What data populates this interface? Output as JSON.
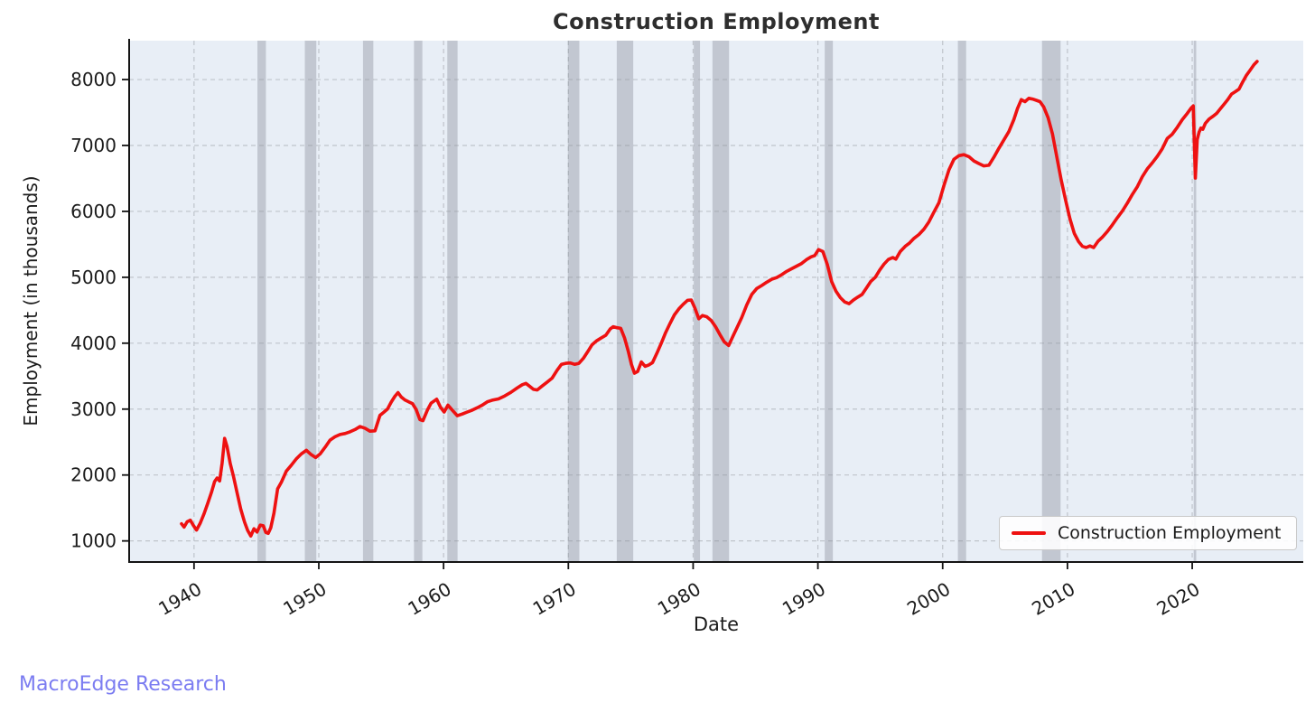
{
  "branding": {
    "watermark": "MacroEdge Research",
    "watermark_color": "#7b7cf1"
  },
  "chart_data": {
    "type": "line",
    "title": "Construction Employment",
    "xlabel": "Date",
    "ylabel": "Employment (in thousands)",
    "x_ticks": [
      1940,
      1950,
      1960,
      1970,
      1980,
      1990,
      2000,
      2010,
      2020
    ],
    "y_ticks": [
      1000,
      2000,
      3000,
      4000,
      5000,
      6000,
      7000,
      8000
    ],
    "xlim": [
      1934.8,
      2028.9
    ],
    "ylim": [
      680,
      8590
    ],
    "grid": true,
    "legend": {
      "position": "lower right",
      "entries": [
        {
          "label": "Construction Employment",
          "color": "#ee1111"
        }
      ]
    },
    "style": {
      "plot_background": "#e8eef6",
      "grid_color": "#bfc4cb",
      "recession_band_color": "rgba(140,146,158,0.42)",
      "spine_color": "#141414",
      "tick_label_color": "#1c1c1c",
      "title_color": "#2e2e2e"
    },
    "recession_bands": [
      [
        1945.08,
        1945.76
      ],
      [
        1948.88,
        1949.8
      ],
      [
        1953.54,
        1954.37
      ],
      [
        1957.63,
        1958.3
      ],
      [
        1960.3,
        1961.12
      ],
      [
        1969.96,
        1970.88
      ],
      [
        1973.88,
        1975.2
      ],
      [
        1980.05,
        1980.55
      ],
      [
        1981.55,
        1982.88
      ],
      [
        1990.55,
        1991.2
      ],
      [
        2001.22,
        2001.88
      ],
      [
        2007.96,
        2009.45
      ],
      [
        2020.12,
        2020.32
      ]
    ],
    "series": [
      {
        "name": "Construction Employment",
        "color": "#ee1111",
        "line_width": 3.6,
        "points": [
          [
            1939.0,
            1260
          ],
          [
            1939.2,
            1210
          ],
          [
            1939.45,
            1290
          ],
          [
            1939.7,
            1315
          ],
          [
            1939.95,
            1235
          ],
          [
            1940.2,
            1165
          ],
          [
            1940.5,
            1270
          ],
          [
            1940.8,
            1410
          ],
          [
            1941.1,
            1570
          ],
          [
            1941.4,
            1740
          ],
          [
            1941.65,
            1900
          ],
          [
            1941.85,
            1955
          ],
          [
            1942.05,
            1910
          ],
          [
            1942.25,
            2180
          ],
          [
            1942.45,
            2555
          ],
          [
            1942.65,
            2430
          ],
          [
            1942.9,
            2175
          ],
          [
            1943.15,
            1985
          ],
          [
            1943.45,
            1730
          ],
          [
            1943.75,
            1480
          ],
          [
            1944.05,
            1285
          ],
          [
            1944.3,
            1160
          ],
          [
            1944.55,
            1075
          ],
          [
            1944.8,
            1185
          ],
          [
            1945.05,
            1135
          ],
          [
            1945.3,
            1240
          ],
          [
            1945.55,
            1230
          ],
          [
            1945.75,
            1130
          ],
          [
            1945.95,
            1115
          ],
          [
            1946.15,
            1200
          ],
          [
            1946.4,
            1420
          ],
          [
            1946.7,
            1790
          ],
          [
            1947.0,
            1890
          ],
          [
            1947.4,
            2060
          ],
          [
            1947.8,
            2150
          ],
          [
            1948.2,
            2245
          ],
          [
            1948.6,
            2320
          ],
          [
            1949.0,
            2375
          ],
          [
            1949.35,
            2315
          ],
          [
            1949.75,
            2265
          ],
          [
            1950.1,
            2320
          ],
          [
            1950.5,
            2420
          ],
          [
            1950.9,
            2530
          ],
          [
            1951.3,
            2580
          ],
          [
            1951.7,
            2615
          ],
          [
            1952.1,
            2630
          ],
          [
            1952.5,
            2655
          ],
          [
            1952.9,
            2690
          ],
          [
            1953.3,
            2735
          ],
          [
            1953.7,
            2710
          ],
          [
            1954.1,
            2665
          ],
          [
            1954.5,
            2670
          ],
          [
            1954.9,
            2905
          ],
          [
            1955.2,
            2950
          ],
          [
            1955.5,
            3000
          ],
          [
            1955.8,
            3105
          ],
          [
            1956.1,
            3195
          ],
          [
            1956.35,
            3250
          ],
          [
            1956.6,
            3185
          ],
          [
            1956.9,
            3140
          ],
          [
            1957.2,
            3110
          ],
          [
            1957.5,
            3085
          ],
          [
            1957.8,
            2995
          ],
          [
            1958.1,
            2840
          ],
          [
            1958.35,
            2825
          ],
          [
            1958.7,
            2985
          ],
          [
            1959.0,
            3090
          ],
          [
            1959.45,
            3150
          ],
          [
            1959.75,
            3030
          ],
          [
            1960.05,
            2955
          ],
          [
            1960.35,
            3060
          ],
          [
            1960.7,
            2985
          ],
          [
            1961.1,
            2900
          ],
          [
            1961.5,
            2925
          ],
          [
            1961.9,
            2955
          ],
          [
            1962.3,
            2985
          ],
          [
            1962.7,
            3020
          ],
          [
            1963.1,
            3060
          ],
          [
            1963.5,
            3110
          ],
          [
            1963.9,
            3135
          ],
          [
            1964.4,
            3155
          ],
          [
            1964.9,
            3200
          ],
          [
            1965.4,
            3255
          ],
          [
            1965.9,
            3320
          ],
          [
            1966.3,
            3370
          ],
          [
            1966.6,
            3390
          ],
          [
            1966.9,
            3345
          ],
          [
            1967.2,
            3300
          ],
          [
            1967.5,
            3290
          ],
          [
            1967.9,
            3350
          ],
          [
            1968.3,
            3410
          ],
          [
            1968.7,
            3470
          ],
          [
            1969.1,
            3590
          ],
          [
            1969.45,
            3680
          ],
          [
            1969.8,
            3695
          ],
          [
            1970.15,
            3700
          ],
          [
            1970.5,
            3680
          ],
          [
            1970.85,
            3695
          ],
          [
            1971.2,
            3770
          ],
          [
            1971.55,
            3870
          ],
          [
            1971.9,
            3975
          ],
          [
            1972.25,
            4035
          ],
          [
            1972.6,
            4075
          ],
          [
            1973.0,
            4120
          ],
          [
            1973.35,
            4215
          ],
          [
            1973.6,
            4250
          ],
          [
            1973.9,
            4235
          ],
          [
            1974.2,
            4225
          ],
          [
            1974.5,
            4080
          ],
          [
            1974.8,
            3880
          ],
          [
            1975.05,
            3680
          ],
          [
            1975.3,
            3545
          ],
          [
            1975.55,
            3570
          ],
          [
            1975.85,
            3715
          ],
          [
            1976.15,
            3650
          ],
          [
            1976.45,
            3670
          ],
          [
            1976.75,
            3705
          ],
          [
            1977.1,
            3850
          ],
          [
            1977.45,
            4000
          ],
          [
            1977.8,
            4160
          ],
          [
            1978.15,
            4300
          ],
          [
            1978.5,
            4430
          ],
          [
            1978.85,
            4520
          ],
          [
            1979.2,
            4590
          ],
          [
            1979.55,
            4650
          ],
          [
            1979.85,
            4655
          ],
          [
            1980.15,
            4530
          ],
          [
            1980.45,
            4370
          ],
          [
            1980.75,
            4420
          ],
          [
            1981.1,
            4400
          ],
          [
            1981.45,
            4345
          ],
          [
            1981.8,
            4250
          ],
          [
            1982.15,
            4130
          ],
          [
            1982.5,
            4020
          ],
          [
            1982.85,
            3965
          ],
          [
            1983.2,
            4110
          ],
          [
            1983.55,
            4250
          ],
          [
            1983.9,
            4390
          ],
          [
            1984.3,
            4580
          ],
          [
            1984.7,
            4740
          ],
          [
            1985.1,
            4830
          ],
          [
            1985.5,
            4875
          ],
          [
            1985.9,
            4925
          ],
          [
            1986.3,
            4970
          ],
          [
            1986.7,
            4995
          ],
          [
            1987.1,
            5040
          ],
          [
            1987.5,
            5090
          ],
          [
            1987.9,
            5130
          ],
          [
            1988.3,
            5170
          ],
          [
            1988.7,
            5210
          ],
          [
            1989.1,
            5270
          ],
          [
            1989.45,
            5310
          ],
          [
            1989.75,
            5330
          ],
          [
            1990.05,
            5420
          ],
          [
            1990.4,
            5390
          ],
          [
            1990.75,
            5195
          ],
          [
            1991.1,
            4935
          ],
          [
            1991.45,
            4790
          ],
          [
            1991.8,
            4690
          ],
          [
            1992.15,
            4625
          ],
          [
            1992.5,
            4600
          ],
          [
            1992.85,
            4655
          ],
          [
            1993.2,
            4700
          ],
          [
            1993.55,
            4740
          ],
          [
            1993.9,
            4840
          ],
          [
            1994.25,
            4940
          ],
          [
            1994.6,
            5000
          ],
          [
            1994.95,
            5110
          ],
          [
            1995.3,
            5200
          ],
          [
            1995.65,
            5270
          ],
          [
            1996.0,
            5300
          ],
          [
            1996.25,
            5275
          ],
          [
            1996.6,
            5390
          ],
          [
            1997.0,
            5470
          ],
          [
            1997.35,
            5520
          ],
          [
            1997.7,
            5590
          ],
          [
            1998.1,
            5650
          ],
          [
            1998.5,
            5730
          ],
          [
            1998.9,
            5840
          ],
          [
            1999.3,
            5990
          ],
          [
            1999.7,
            6130
          ],
          [
            2000.1,
            6390
          ],
          [
            2000.5,
            6630
          ],
          [
            2000.9,
            6790
          ],
          [
            2001.3,
            6845
          ],
          [
            2001.7,
            6860
          ],
          [
            2002.1,
            6830
          ],
          [
            2002.5,
            6765
          ],
          [
            2002.9,
            6725
          ],
          [
            2003.3,
            6690
          ],
          [
            2003.7,
            6700
          ],
          [
            2004.1,
            6820
          ],
          [
            2004.5,
            6955
          ],
          [
            2004.9,
            7080
          ],
          [
            2005.3,
            7210
          ],
          [
            2005.7,
            7390
          ],
          [
            2006.0,
            7560
          ],
          [
            2006.3,
            7695
          ],
          [
            2006.6,
            7665
          ],
          [
            2006.9,
            7715
          ],
          [
            2007.2,
            7705
          ],
          [
            2007.5,
            7685
          ],
          [
            2007.8,
            7665
          ],
          [
            2008.1,
            7585
          ],
          [
            2008.45,
            7420
          ],
          [
            2008.8,
            7175
          ],
          [
            2009.15,
            6820
          ],
          [
            2009.5,
            6475
          ],
          [
            2009.85,
            6175
          ],
          [
            2010.2,
            5885
          ],
          [
            2010.55,
            5665
          ],
          [
            2010.9,
            5540
          ],
          [
            2011.2,
            5470
          ],
          [
            2011.5,
            5450
          ],
          [
            2011.8,
            5475
          ],
          [
            2012.1,
            5450
          ],
          [
            2012.45,
            5545
          ],
          [
            2012.8,
            5610
          ],
          [
            2013.2,
            5695
          ],
          [
            2013.6,
            5795
          ],
          [
            2014.0,
            5905
          ],
          [
            2014.4,
            6005
          ],
          [
            2014.8,
            6125
          ],
          [
            2015.2,
            6255
          ],
          [
            2015.6,
            6375
          ],
          [
            2016.0,
            6525
          ],
          [
            2016.4,
            6645
          ],
          [
            2016.8,
            6735
          ],
          [
            2017.2,
            6835
          ],
          [
            2017.6,
            6950
          ],
          [
            2018.0,
            7105
          ],
          [
            2018.4,
            7170
          ],
          [
            2018.8,
            7275
          ],
          [
            2019.2,
            7390
          ],
          [
            2019.6,
            7485
          ],
          [
            2019.9,
            7565
          ],
          [
            2020.08,
            7600
          ],
          [
            2020.25,
            6505
          ],
          [
            2020.4,
            7090
          ],
          [
            2020.55,
            7200
          ],
          [
            2020.7,
            7265
          ],
          [
            2020.85,
            7245
          ],
          [
            2021.05,
            7335
          ],
          [
            2021.35,
            7400
          ],
          [
            2021.65,
            7440
          ],
          [
            2021.95,
            7485
          ],
          [
            2022.25,
            7555
          ],
          [
            2022.55,
            7625
          ],
          [
            2022.85,
            7695
          ],
          [
            2023.15,
            7780
          ],
          [
            2023.45,
            7815
          ],
          [
            2023.75,
            7855
          ],
          [
            2024.05,
            7965
          ],
          [
            2024.35,
            8065
          ],
          [
            2024.65,
            8145
          ],
          [
            2024.95,
            8225
          ],
          [
            2025.2,
            8275
          ]
        ]
      }
    ]
  }
}
